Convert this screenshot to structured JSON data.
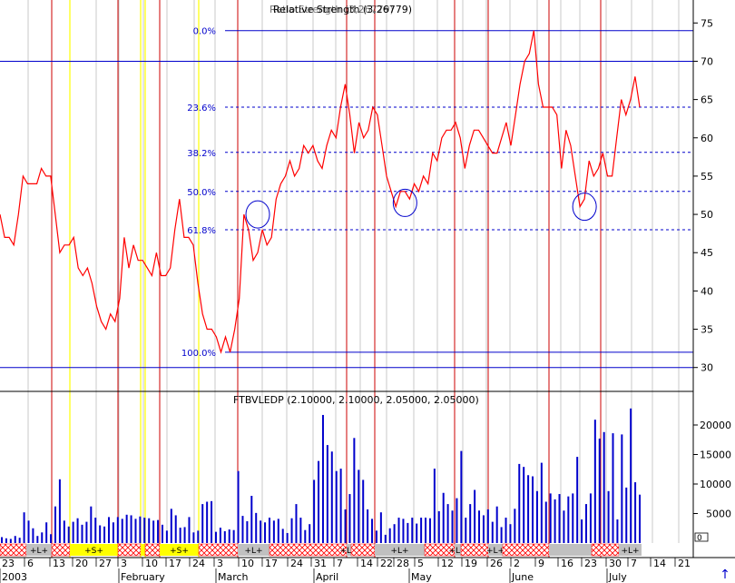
{
  "chart_data": [
    {
      "type": "line",
      "title": "Relative Strength (3,26779)",
      "title_overlap": "Ratio Strength (3,26779)",
      "ylim": [
        27,
        78
      ],
      "yticks": [
        30,
        35,
        40,
        45,
        50,
        55,
        60,
        65,
        70,
        75
      ],
      "series": [
        {
          "name": "Relative Strength",
          "color": "#ff0000",
          "values": [
            50,
            47,
            47,
            46,
            50,
            55,
            54,
            54,
            54,
            56,
            55,
            55,
            50,
            45,
            46,
            46,
            47,
            43,
            42,
            43,
            41,
            38,
            36,
            35,
            37,
            36,
            39,
            47,
            43,
            46,
            44,
            44,
            43,
            42,
            45,
            42,
            42,
            43,
            48,
            52,
            47,
            47,
            46,
            41,
            37,
            35,
            35,
            34,
            32,
            34,
            32,
            35,
            39,
            50,
            48,
            44,
            45,
            48,
            46,
            47,
            52,
            54,
            55,
            57,
            55,
            56,
            59,
            58,
            59,
            57,
            56,
            59,
            61,
            60,
            64,
            67,
            63,
            58,
            62,
            60,
            61,
            64,
            63,
            59,
            55,
            53,
            51,
            53,
            53,
            52,
            54,
            53,
            55,
            54,
            58,
            57,
            60,
            61,
            61,
            62,
            60,
            56,
            59,
            61,
            61,
            60,
            59,
            58,
            58,
            60,
            62,
            59,
            63,
            67,
            70,
            71,
            74,
            67,
            64,
            64,
            64,
            63,
            56,
            61,
            59,
            55,
            51,
            52,
            57,
            55,
            56,
            58,
            55,
            55,
            60,
            65,
            63,
            65,
            68,
            64
          ]
        }
      ],
      "fibonacci_levels": [
        {
          "label": "0.0%",
          "value": 74
        },
        {
          "label": "23.6%",
          "value": 64
        },
        {
          "label": "38.2%",
          "value": 58.1
        },
        {
          "label": "50.0%",
          "value": 53
        },
        {
          "label": "61.8%",
          "value": 48
        },
        {
          "label": "100.0%",
          "value": 32
        }
      ],
      "horizontal_lines": [
        70,
        30
      ],
      "circles": [
        {
          "index": 56,
          "value": 50
        },
        {
          "index": 88,
          "value": 51.5
        },
        {
          "index": 127,
          "value": 51
        }
      ]
    },
    {
      "type": "bar",
      "title": "FTBVLEDP (2.10000, 2.10000, 2.05000, 2.05000)",
      "ylim": [
        0,
        24000
      ],
      "yticks": [
        5000,
        10000,
        15000,
        20000
      ],
      "series": [
        {
          "name": "FTBVLEDP",
          "color": "#0000cc",
          "values": [
            1000,
            800,
            700,
            1200,
            900,
            5200,
            3800,
            2500,
            1200,
            1800,
            3500,
            1500,
            6200,
            10800,
            3800,
            2800,
            3600,
            4200,
            3100,
            3600,
            6200,
            4300,
            3000,
            2800,
            4400,
            3500,
            4400,
            4100,
            4800,
            4700,
            4100,
            4500,
            4300,
            4200,
            3800,
            3900,
            3100,
            2100,
            5800,
            4700,
            2600,
            2700,
            4400,
            1800,
            2100,
            6600,
            7000,
            7100,
            1900,
            2600,
            2000,
            2300,
            2200,
            12200,
            4600,
            3700,
            8000,
            5100,
            3800,
            3500,
            4300,
            3800,
            4100,
            2400,
            1700,
            4200,
            6600,
            4300,
            2200,
            3200,
            10700,
            13900,
            21700,
            16600,
            15500,
            12200,
            12600,
            5700,
            8300,
            17800,
            12400,
            10700,
            5700,
            4100,
            2100,
            5200,
            1400,
            2500,
            3200,
            4300,
            4100,
            3400,
            4300,
            3300,
            4300,
            4300,
            4200,
            12600,
            5400,
            8500,
            6600,
            5500,
            7600,
            15600,
            4300,
            6600,
            9000,
            5500,
            4700,
            5700,
            3600,
            6200,
            2700,
            4300,
            3200,
            5800,
            13400,
            12900,
            11500,
            11300,
            8800,
            13600,
            7000,
            8400,
            7400,
            8300,
            5500,
            7900,
            8400,
            14600,
            4000,
            6600,
            8400,
            20900,
            17700,
            18800,
            8800,
            18600,
            4000,
            18400,
            9400,
            22800,
            10300,
            8200
          ]
        }
      ]
    }
  ],
  "volume_y_axis_box": "0",
  "time_axis": {
    "day_labels": [
      "23",
      "6",
      "13",
      "20",
      "27",
      "3",
      "10",
      "17",
      "24",
      "3",
      "10",
      "17",
      "24",
      "31",
      "7",
      "14",
      "22",
      "28",
      "5",
      "12",
      "19",
      "26",
      "2",
      "9",
      "16",
      "23",
      "30",
      "7",
      "14",
      "21"
    ],
    "month_labels": [
      "2003",
      "February",
      "March",
      "April",
      "May",
      "June",
      "July"
    ]
  },
  "signal_bands": [
    {
      "kind": "hatch",
      "text": ""
    },
    {
      "kind": "gray",
      "text": "+L+"
    },
    {
      "kind": "hatch",
      "text": ""
    },
    {
      "kind": "yellow",
      "text": "+S+"
    },
    {
      "kind": "hatch",
      "text": ""
    },
    {
      "kind": "yellow",
      "text": ""
    },
    {
      "kind": "hatch",
      "text": ""
    },
    {
      "kind": "yellow",
      "text": "+S+"
    },
    {
      "kind": "hatch",
      "text": ""
    },
    {
      "kind": "gray",
      "text": "+L+"
    },
    {
      "kind": "hatch",
      "text": ""
    },
    {
      "kind": "gray",
      "text": "+L+"
    },
    {
      "kind": "hatch",
      "text": ""
    },
    {
      "kind": "gray",
      "text": "+L+"
    },
    {
      "kind": "hatch",
      "text": ""
    },
    {
      "kind": "gray",
      "text": "+L+"
    },
    {
      "kind": "hatch",
      "text": ""
    },
    {
      "kind": "gray",
      "text": "+L+"
    },
    {
      "kind": "hatch",
      "text": ""
    },
    {
      "kind": "gray",
      "text": ""
    },
    {
      "kind": "hatch",
      "text": ""
    },
    {
      "kind": "gray",
      "text": "+L+"
    }
  ],
  "colors": {
    "line": "#ff0000",
    "bars": "#0000cc",
    "fib": "#0000cc",
    "red_vline": "#cc0000",
    "yellow_vline": "#ffff00",
    "grid_vline": "#c8c8c8",
    "hatch": "#ff0000",
    "gray_band": "#c0c0c0",
    "yellow_band": "#ffff00"
  },
  "icons": {
    "scroll": "up-arrow-icon"
  }
}
